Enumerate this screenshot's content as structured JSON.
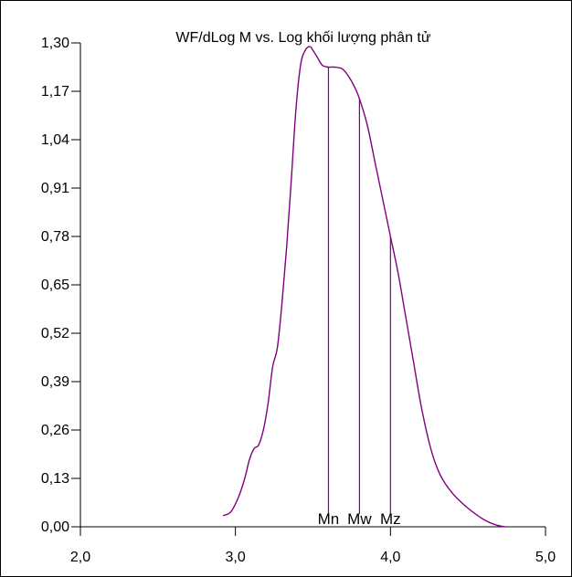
{
  "chart_data": {
    "type": "line",
    "title": "WF/dLog M vs. Log khối lượng phân tử",
    "xlabel": "",
    "ylabel": "",
    "xlim": [
      2.0,
      5.0
    ],
    "ylim": [
      0.0,
      1.3
    ],
    "x_ticks": [
      2.0,
      3.0,
      4.0,
      5.0
    ],
    "x_tick_labels": [
      "2,0",
      "3,0",
      "4,0",
      "5,0"
    ],
    "y_ticks": [
      0.0,
      0.13,
      0.26,
      0.39,
      0.52,
      0.65,
      0.78,
      0.91,
      1.04,
      1.17,
      1.3
    ],
    "y_tick_labels": [
      "0,00",
      "0,13",
      "0,26",
      "0,39",
      "0,52",
      "0,65",
      "0,78",
      "0,91",
      "1,04",
      "1,17",
      "1,30"
    ],
    "grid": false,
    "line_color": "#800080",
    "series": [
      {
        "x": [
          2.92,
          2.97,
          3.02,
          3.06,
          3.09,
          3.12,
          3.15,
          3.18,
          3.21,
          3.24,
          3.27,
          3.3,
          3.33,
          3.36,
          3.39,
          3.42,
          3.45,
          3.48,
          3.5,
          3.53,
          3.56,
          3.6,
          3.64,
          3.69,
          3.73,
          3.77,
          3.8,
          3.85,
          3.9,
          3.95,
          4.0,
          4.05,
          4.1,
          4.15,
          4.2,
          4.26,
          4.32,
          4.4,
          4.5,
          4.6,
          4.68,
          4.74
        ],
        "y": [
          0.03,
          0.04,
          0.08,
          0.13,
          0.18,
          0.21,
          0.22,
          0.26,
          0.33,
          0.43,
          0.48,
          0.6,
          0.75,
          0.93,
          1.12,
          1.24,
          1.28,
          1.29,
          1.28,
          1.26,
          1.24,
          1.235,
          1.235,
          1.23,
          1.21,
          1.18,
          1.15,
          1.08,
          0.98,
          0.88,
          0.78,
          0.68,
          0.56,
          0.44,
          0.32,
          0.21,
          0.14,
          0.09,
          0.05,
          0.02,
          0.005,
          0.0
        ]
      }
    ],
    "markers": [
      {
        "label": "Mn",
        "x": 3.6,
        "y": 1.235
      },
      {
        "label": "Mw",
        "x": 3.8,
        "y": 1.15
      },
      {
        "label": "Mz",
        "x": 4.0,
        "y": 0.78
      }
    ]
  }
}
